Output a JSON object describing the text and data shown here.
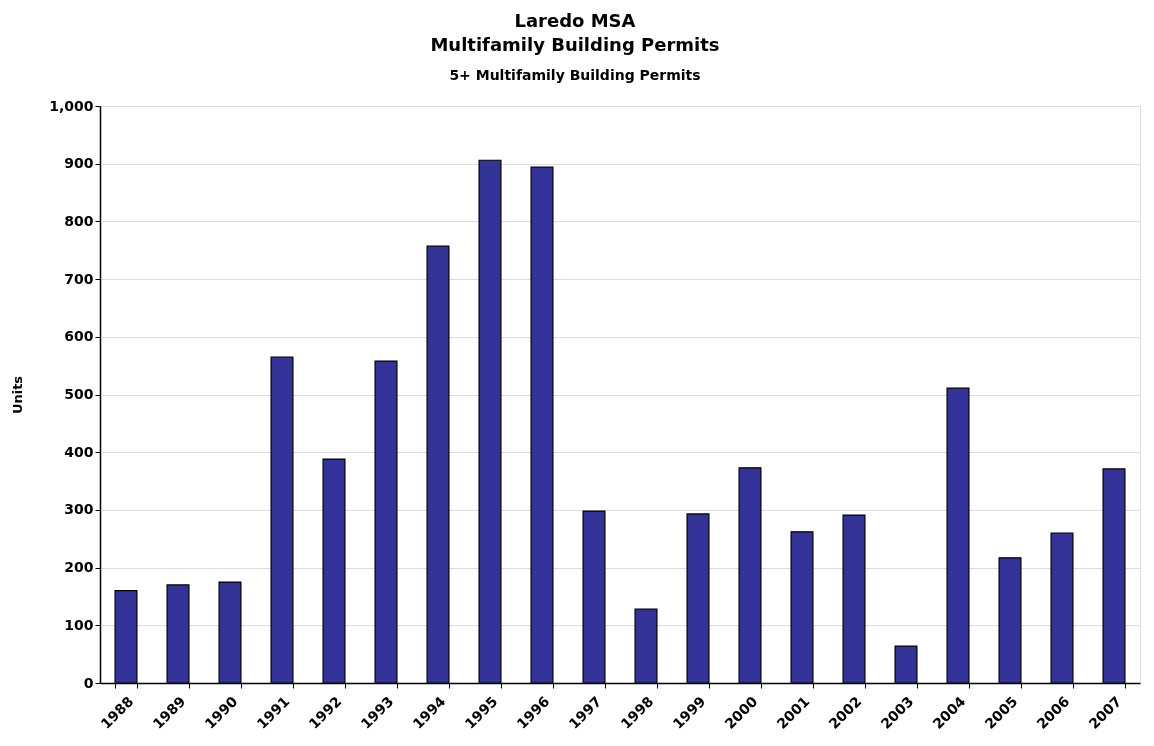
{
  "chart_data": {
    "type": "bar",
    "title": "Laredo MSA\nMultifamily Building Permits",
    "subtitle": "5+ Multifamily Building Permits",
    "ylabel": "Units",
    "categories": [
      "1988",
      "1989",
      "1990",
      "1991",
      "1992",
      "1993",
      "1994",
      "1995",
      "1996",
      "1997",
      "1998",
      "1999",
      "2000",
      "2001",
      "2002",
      "2003",
      "2004",
      "2005",
      "2006",
      "2007"
    ],
    "values": [
      160,
      170,
      175,
      565,
      388,
      558,
      757,
      906,
      894,
      298,
      128,
      293,
      373,
      262,
      291,
      64,
      511,
      217,
      260,
      371
    ],
    "color": "#333399",
    "ylim": [
      0,
      1000
    ],
    "yticks": [
      0,
      100,
      200,
      300,
      400,
      500,
      600,
      700,
      800,
      900,
      {
        "value": 1000,
        "label": "1,000"
      }
    ],
    "grid": "y"
  }
}
